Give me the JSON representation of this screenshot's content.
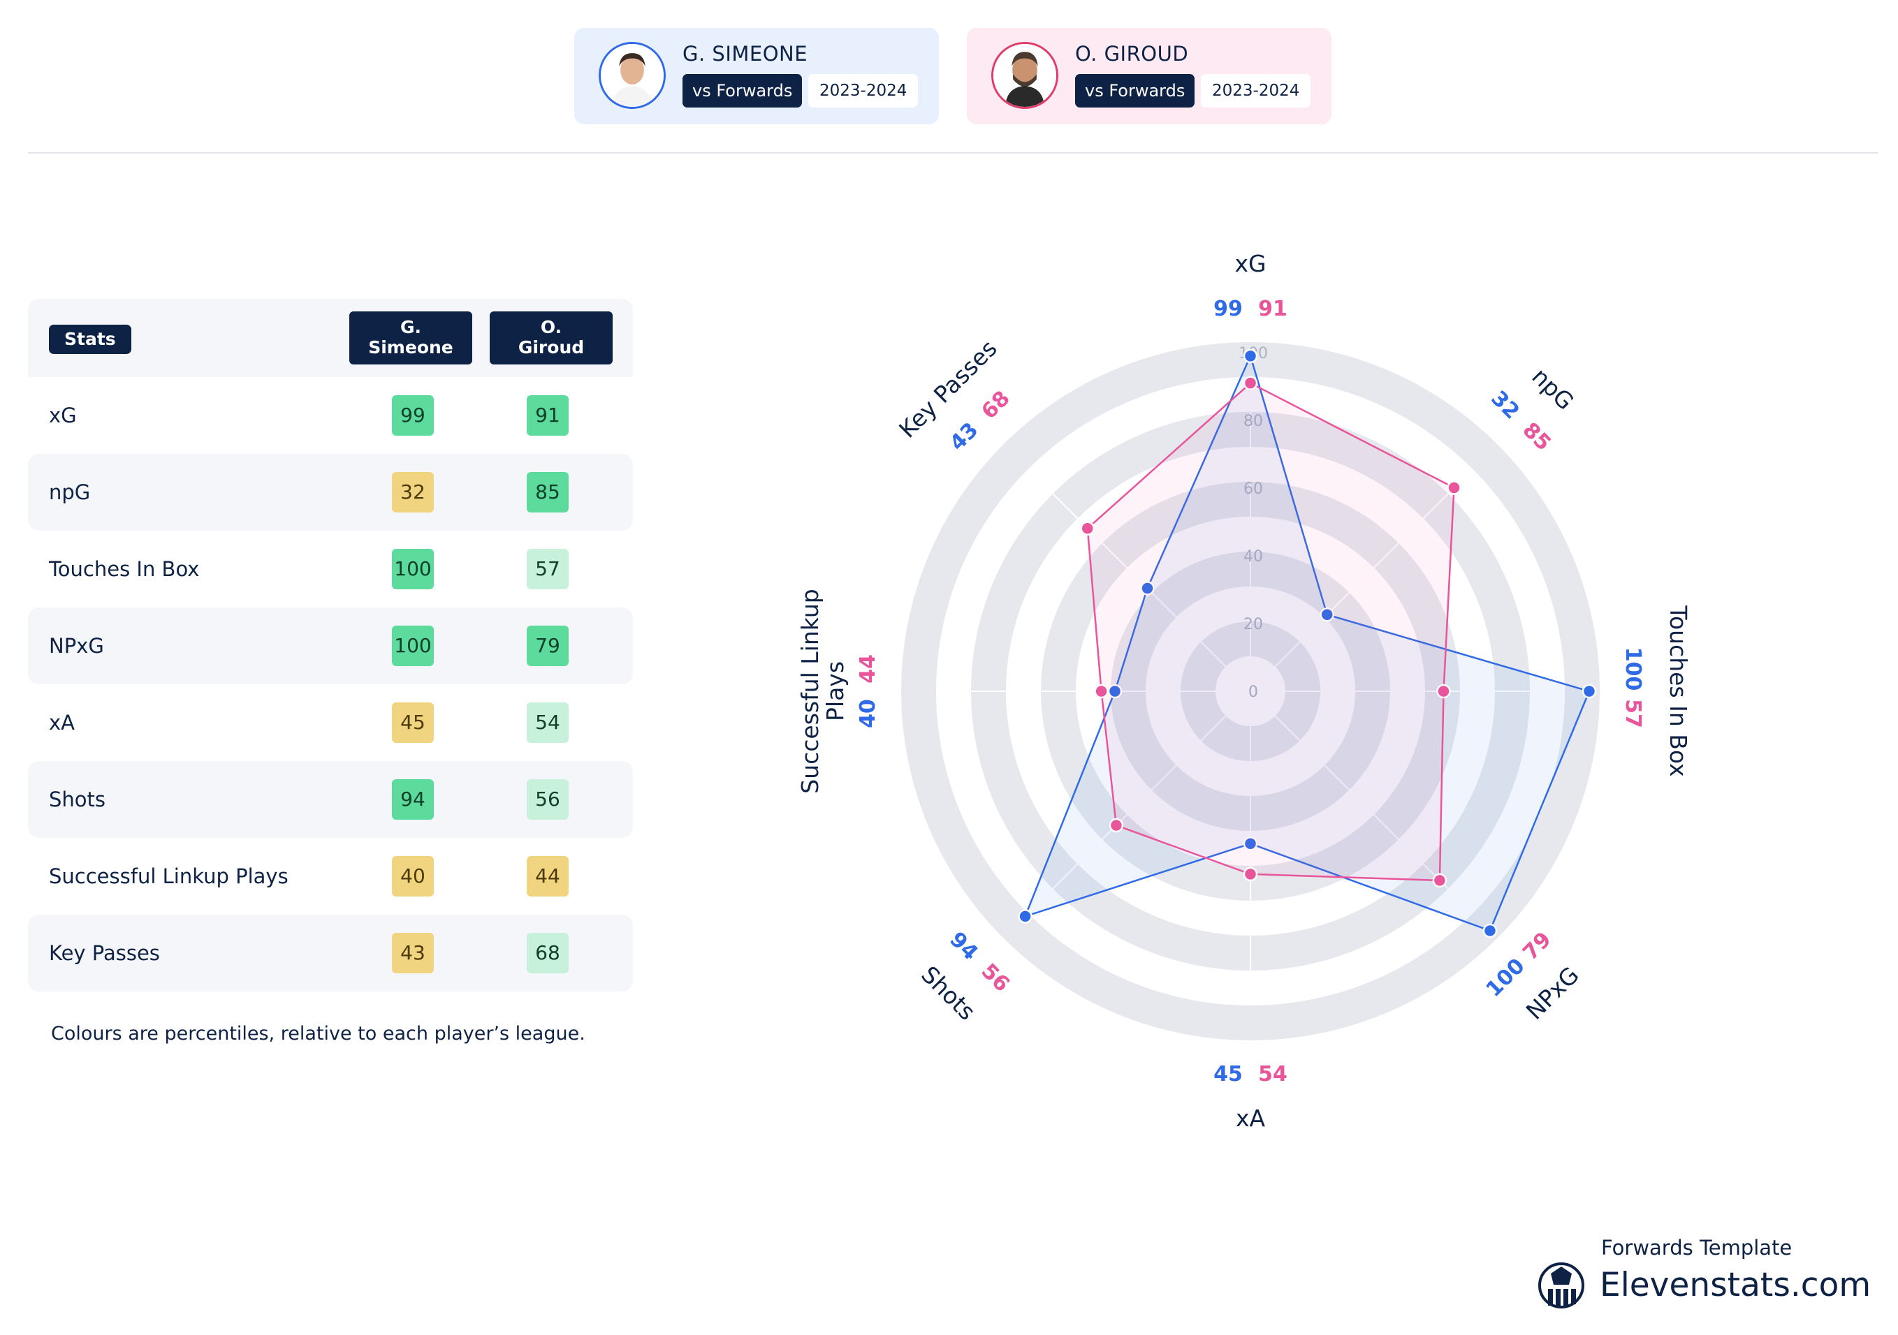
{
  "players": [
    {
      "name": "G. SIMEONE",
      "context": "vs Forwards",
      "season": "2023-2024",
      "color": "#2f6be6"
    },
    {
      "name": "O. GIROUD",
      "context": "vs Forwards",
      "season": "2023-2024",
      "color": "#e23b6a"
    }
  ],
  "table": {
    "header": "Stats",
    "columns": [
      "G.\nSimeone",
      "O.\nGiroud"
    ],
    "rows": [
      {
        "label": "xG",
        "v1": "99",
        "v2": "91",
        "t1": "high",
        "t2": "high"
      },
      {
        "label": "npG",
        "v1": "32",
        "v2": "85",
        "t1": "low",
        "t2": "high"
      },
      {
        "label": "Touches In Box",
        "v1": "100",
        "v2": "57",
        "t1": "high",
        "t2": "mid"
      },
      {
        "label": "NPxG",
        "v1": "100",
        "v2": "79",
        "t1": "high",
        "t2": "high"
      },
      {
        "label": "xA",
        "v1": "45",
        "v2": "54",
        "t1": "low",
        "t2": "mid"
      },
      {
        "label": "Shots",
        "v1": "94",
        "v2": "56",
        "t1": "high",
        "t2": "mid"
      },
      {
        "label": "Successful Linkup Plays",
        "v1": "40",
        "v2": "44",
        "t1": "low",
        "t2": "low"
      },
      {
        "label": "Key Passes",
        "v1": "43",
        "v2": "68",
        "t1": "low",
        "t2": "mid"
      }
    ],
    "note": "Colours are percentiles, relative to each player’s league."
  },
  "chart_data": {
    "type": "radar",
    "axes": [
      "xG",
      "npG",
      "Touches In Box",
      "NPxG",
      "xA",
      "Shots",
      "Successful Linkup Plays",
      "Key Passes"
    ],
    "axis_label_lines": [
      [
        "xG"
      ],
      [
        "npG"
      ],
      [
        "Touches In Box"
      ],
      [
        "NPxG"
      ],
      [
        "xA"
      ],
      [
        "Shots"
      ],
      [
        "Successful Linkup",
        "Plays"
      ],
      [
        "Key Passes"
      ]
    ],
    "radial_ticks": [
      "0",
      "20",
      "40",
      "60",
      "80",
      "100"
    ],
    "rlim": [
      0,
      100
    ],
    "series": [
      {
        "name": "G. Simeone",
        "color": "#2f6be6",
        "values": [
          99,
          32,
          100,
          100,
          45,
          94,
          40,
          43
        ]
      },
      {
        "name": "O. Giroud",
        "color": "#e8559a",
        "values": [
          91,
          85,
          57,
          79,
          54,
          56,
          44,
          68
        ]
      }
    ]
  },
  "brand": {
    "subtitle": "Forwards Template",
    "name": "Elevenstats.com"
  }
}
